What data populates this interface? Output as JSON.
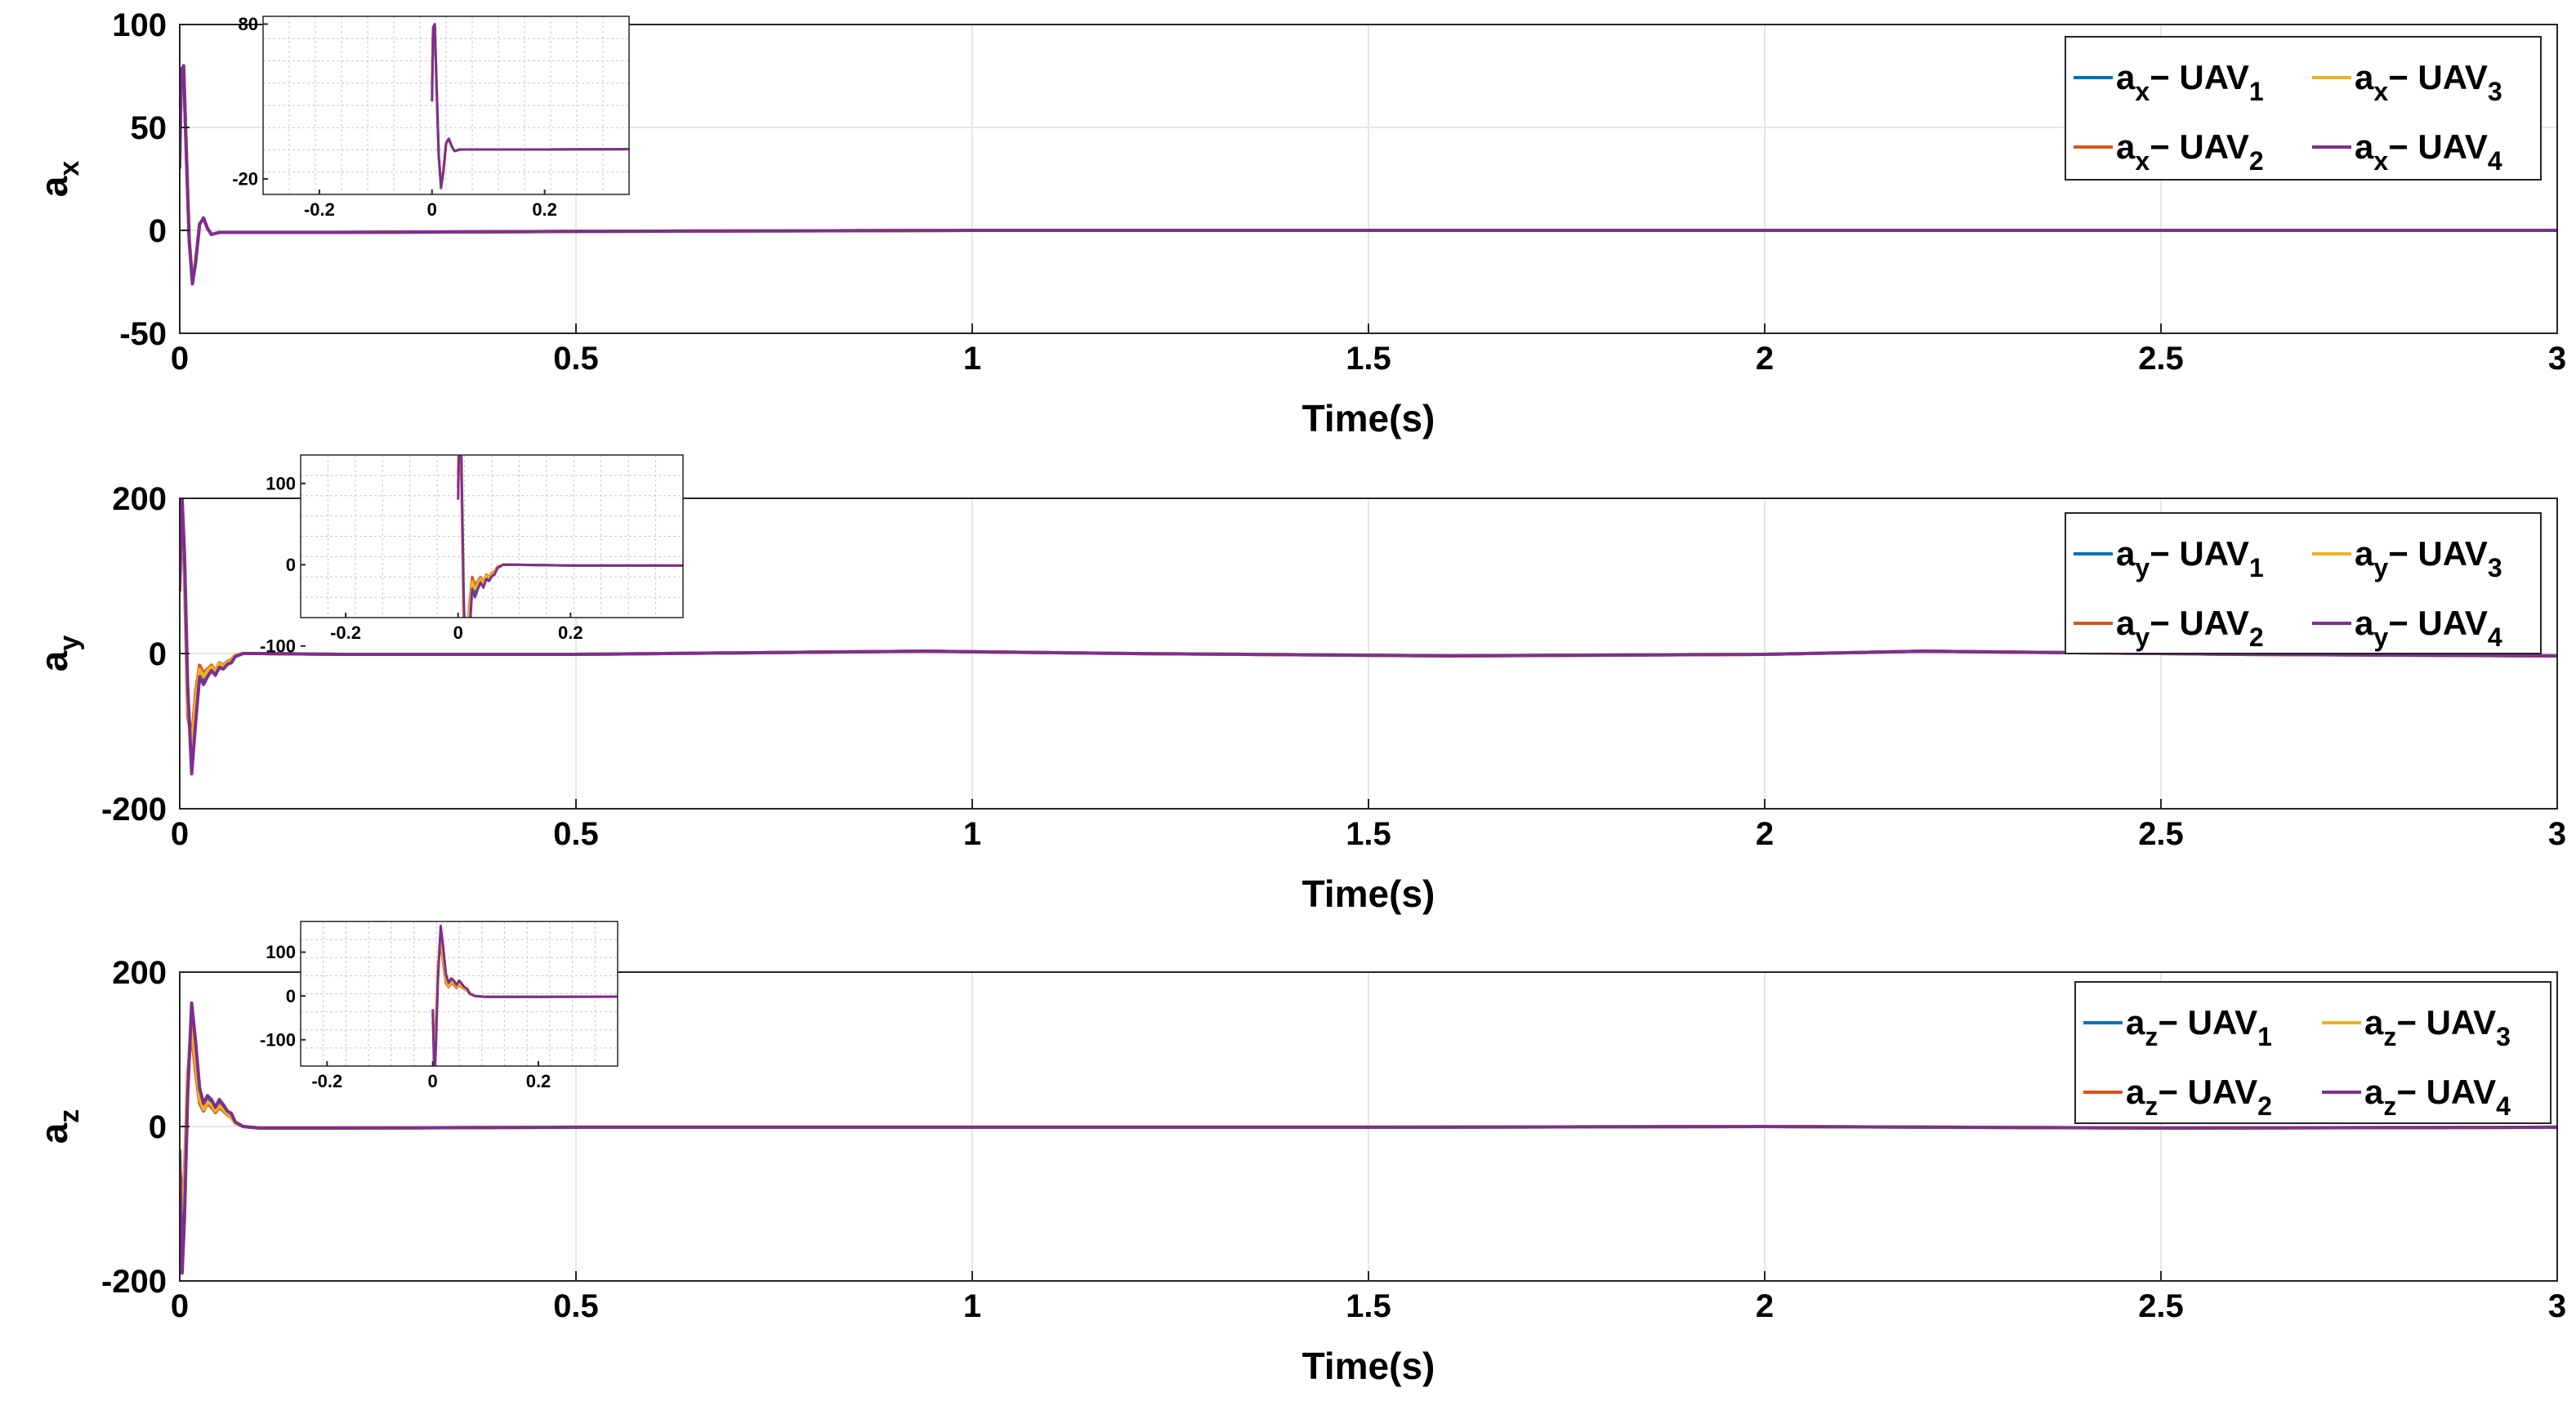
{
  "chart_data": [
    {
      "type": "line",
      "xlabel": "Time(s)",
      "ylabel_base": "a",
      "ylabel_sub": "x",
      "xlim": [
        0,
        3
      ],
      "ylim": [
        -50,
        100
      ],
      "xticks": [
        "0",
        "0.5",
        "1",
        "1.5",
        "2",
        "2.5",
        "3"
      ],
      "xtick_values": [
        0,
        0.5,
        1,
        1.5,
        2,
        2.5,
        3
      ],
      "yticks": [
        "-50",
        "0",
        "50",
        "100"
      ],
      "ytick_values": [
        -50,
        0,
        50,
        100
      ],
      "grid": true,
      "legend_position": "top-right",
      "series": [
        {
          "name_base": "a",
          "name_sub": "x",
          "uav": "UAV",
          "uav_sub": "1",
          "color": "#0072BD",
          "x": [
            0,
            0.002,
            0.005,
            0.008,
            0.012,
            0.016,
            0.02,
            0.025,
            0.03,
            0.035,
            0.04,
            0.05,
            0.06,
            0.08,
            0.1,
            0.2,
            0.5,
            1,
            1.5,
            2,
            2.5,
            3
          ],
          "y": [
            35,
            75,
            78,
            40,
            -5,
            -24,
            -15,
            3,
            6,
            1,
            -2,
            -1,
            -1,
            -1,
            -1,
            -1,
            -0.5,
            0,
            0,
            0,
            0,
            0
          ]
        },
        {
          "name_base": "a",
          "name_sub": "x",
          "uav": "UAV",
          "uav_sub": "2",
          "color": "#D95319",
          "x": [
            0,
            0.002,
            0.005,
            0.008,
            0.012,
            0.016,
            0.02,
            0.025,
            0.03,
            0.035,
            0.04,
            0.05,
            0.06,
            0.08,
            0.1,
            0.2,
            0.5,
            1,
            1.5,
            2,
            2.5,
            3
          ],
          "y": [
            40,
            76,
            78,
            42,
            -4,
            -24,
            -15,
            3,
            6,
            1,
            -2,
            -1,
            -1,
            -1,
            -1,
            -1,
            -0.5,
            0,
            0,
            0,
            0,
            0
          ]
        },
        {
          "name_base": "a",
          "name_sub": "x",
          "uav": "UAV",
          "uav_sub": "3",
          "color": "#EDB120",
          "x": [
            0,
            0.002,
            0.005,
            0.008,
            0.012,
            0.016,
            0.02,
            0.025,
            0.03,
            0.035,
            0.04,
            0.05,
            0.06,
            0.08,
            0.1,
            0.2,
            0.5,
            1,
            1.5,
            2,
            2.5,
            3
          ],
          "y": [
            45,
            77,
            79,
            43,
            -4,
            -25,
            -15,
            3,
            6,
            1,
            -2,
            -1,
            -1,
            -1,
            -1,
            -1,
            -0.5,
            0,
            0,
            0,
            0,
            0
          ]
        },
        {
          "name_base": "a",
          "name_sub": "x",
          "uav": "UAV",
          "uav_sub": "4",
          "color": "#7E2F8E",
          "x": [
            0,
            0.002,
            0.005,
            0.008,
            0.012,
            0.016,
            0.02,
            0.025,
            0.03,
            0.035,
            0.04,
            0.05,
            0.06,
            0.08,
            0.1,
            0.2,
            0.5,
            1,
            1.5,
            2,
            2.5,
            3
          ],
          "y": [
            30,
            78,
            80,
            41,
            -5,
            -26,
            -16,
            3,
            6,
            1,
            -2,
            -1,
            -1,
            -1,
            -1,
            -1,
            -0.5,
            0,
            0,
            0,
            0,
            0
          ]
        }
      ],
      "inset": {
        "xlim": [
          -0.3,
          0.35
        ],
        "ylim": [
          -30,
          85
        ],
        "xticks": [
          "-0.2",
          "0",
          "0.2"
        ],
        "xtick_values": [
          -0.2,
          0,
          0.2
        ],
        "yticks": [
          "-20",
          "80"
        ],
        "ytick_values": [
          -20,
          80
        ]
      }
    },
    {
      "type": "line",
      "xlabel": "Time(s)",
      "ylabel_base": "a",
      "ylabel_sub": "y",
      "xlim": [
        0,
        3
      ],
      "ylim": [
        -200,
        200
      ],
      "xticks": [
        "0",
        "0.5",
        "1",
        "1.5",
        "2",
        "2.5",
        "3"
      ],
      "xtick_values": [
        0,
        0.5,
        1,
        1.5,
        2,
        2.5,
        3
      ],
      "yticks": [
        "-200",
        "0",
        "200"
      ],
      "ytick_values": [
        -200,
        0,
        200
      ],
      "grid": true,
      "legend_position": "top-right",
      "series": [
        {
          "name_base": "a",
          "name_sub": "y",
          "uav": "UAV",
          "uav_sub": "1",
          "color": "#0072BD",
          "x": [
            0,
            0.003,
            0.006,
            0.01,
            0.015,
            0.02,
            0.025,
            0.03,
            0.035,
            0.04,
            0.045,
            0.05,
            0.055,
            0.06,
            0.065,
            0.07,
            0.08,
            0.1,
            0.2,
            0.5,
            0.94,
            1.2,
            1.6,
            2,
            2.2,
            2.6,
            3
          ],
          "y": [
            95,
            190,
            120,
            -60,
            -130,
            -70,
            -25,
            -35,
            -25,
            -20,
            -25,
            -15,
            -18,
            -12,
            -10,
            -3,
            0,
            0,
            -1,
            -1,
            3,
            0,
            -3,
            -1,
            3,
            -1,
            -3
          ]
        },
        {
          "name_base": "a",
          "name_sub": "y",
          "uav": "UAV",
          "uav_sub": "2",
          "color": "#D95319",
          "x": [
            0,
            0.003,
            0.006,
            0.01,
            0.015,
            0.02,
            0.025,
            0.03,
            0.035,
            0.04,
            0.045,
            0.05,
            0.055,
            0.06,
            0.065,
            0.07,
            0.08,
            0.1,
            0.2,
            0.5,
            0.94,
            1.2,
            1.6,
            2,
            2.2,
            2.6,
            3
          ],
          "y": [
            110,
            180,
            100,
            -80,
            -110,
            -50,
            -15,
            -25,
            -20,
            -15,
            -22,
            -12,
            -15,
            -10,
            -8,
            -2,
            0,
            0,
            -1,
            -1,
            3,
            0,
            -3,
            -1,
            3,
            -1,
            -3
          ]
        },
        {
          "name_base": "a",
          "name_sub": "y",
          "uav": "UAV",
          "uav_sub": "3",
          "color": "#EDB120",
          "x": [
            0,
            0.003,
            0.006,
            0.01,
            0.015,
            0.02,
            0.025,
            0.03,
            0.035,
            0.04,
            0.045,
            0.05,
            0.055,
            0.06,
            0.065,
            0.07,
            0.08,
            0.1,
            0.2,
            0.5,
            0.94,
            1.2,
            1.6,
            2,
            2.2,
            2.6,
            3
          ],
          "y": [
            120,
            185,
            110,
            -70,
            -120,
            -60,
            -20,
            -30,
            -22,
            -17,
            -23,
            -13,
            -16,
            -11,
            -9,
            -2,
            0,
            0,
            -1,
            -1,
            3,
            0,
            -3,
            -1,
            3,
            -1,
            -3
          ]
        },
        {
          "name_base": "a",
          "name_sub": "y",
          "uav": "UAV",
          "uav_sub": "4",
          "color": "#7E2F8E",
          "x": [
            0,
            0.003,
            0.006,
            0.01,
            0.015,
            0.02,
            0.025,
            0.03,
            0.035,
            0.04,
            0.045,
            0.05,
            0.055,
            0.06,
            0.065,
            0.07,
            0.08,
            0.1,
            0.2,
            0.5,
            0.94,
            1.2,
            1.6,
            2,
            2.2,
            2.6,
            3
          ],
          "y": [
            80,
            200,
            130,
            -40,
            -155,
            -90,
            -30,
            -40,
            -30,
            -22,
            -28,
            -18,
            -20,
            -14,
            -12,
            -4,
            0,
            0,
            -1,
            -1,
            3,
            0,
            -3,
            -1,
            3,
            -1,
            -3
          ]
        }
      ],
      "inset": {
        "xlim": [
          -0.28,
          0.4
        ],
        "ylim": [
          -65,
          135
        ],
        "xticks": [
          "-0.2",
          "0",
          "0.2"
        ],
        "xtick_values": [
          -0.2,
          0,
          0.2
        ],
        "yticks": [
          "-100",
          "0",
          "100"
        ],
        "ytick_values": [
          -100,
          0,
          100
        ]
      }
    },
    {
      "type": "line",
      "xlabel": "Time(s)",
      "ylabel_base": "a",
      "ylabel_sub": "z",
      "xlim": [
        0,
        3
      ],
      "ylim": [
        -200,
        200
      ],
      "xticks": [
        "0",
        "0.5",
        "1",
        "1.5",
        "2",
        "2.5",
        "3"
      ],
      "xtick_values": [
        0,
        0.5,
        1,
        1.5,
        2,
        2.5,
        3
      ],
      "yticks": [
        "-200",
        "0",
        "200"
      ],
      "ytick_values": [
        -200,
        0,
        200
      ],
      "grid": true,
      "legend_position": "top-right",
      "series": [
        {
          "name_base": "a",
          "name_sub": "z",
          "uav": "UAV",
          "uav_sub": "1",
          "color": "#0072BD",
          "x": [
            0,
            0.003,
            0.006,
            0.01,
            0.015,
            0.02,
            0.025,
            0.03,
            0.035,
            0.04,
            0.045,
            0.05,
            0.055,
            0.06,
            0.065,
            0.07,
            0.08,
            0.1,
            0.2,
            0.5,
            1,
            1.5,
            2,
            2.5,
            3
          ],
          "y": [
            -40,
            -120,
            -80,
            60,
            145,
            90,
            40,
            25,
            35,
            30,
            22,
            30,
            25,
            18,
            15,
            5,
            0,
            -2,
            -2,
            -1,
            -1,
            -1,
            0,
            -2,
            -1
          ]
        },
        {
          "name_base": "a",
          "name_sub": "z",
          "uav": "UAV",
          "uav_sub": "2",
          "color": "#D95319",
          "x": [
            0,
            0.003,
            0.006,
            0.01,
            0.015,
            0.02,
            0.025,
            0.03,
            0.035,
            0.04,
            0.045,
            0.05,
            0.055,
            0.06,
            0.065,
            0.07,
            0.08,
            0.1,
            0.2,
            0.5,
            1,
            1.5,
            2,
            2.5,
            3
          ],
          "y": [
            -60,
            -100,
            -60,
            70,
            120,
            70,
            30,
            20,
            30,
            25,
            18,
            25,
            20,
            15,
            12,
            4,
            0,
            -2,
            -2,
            -1,
            -1,
            -1,
            0,
            -2,
            -1
          ]
        },
        {
          "name_base": "a",
          "name_sub": "z",
          "uav": "UAV",
          "uav_sub": "3",
          "color": "#EDB120",
          "x": [
            0,
            0.003,
            0.006,
            0.01,
            0.015,
            0.02,
            0.025,
            0.03,
            0.035,
            0.04,
            0.045,
            0.05,
            0.055,
            0.06,
            0.065,
            0.07,
            0.08,
            0.1,
            0.2,
            0.5,
            1,
            1.5,
            2,
            2.5,
            3
          ],
          "y": [
            -70,
            -110,
            -70,
            65,
            130,
            80,
            35,
            22,
            32,
            28,
            20,
            27,
            22,
            16,
            13,
            4,
            0,
            -2,
            -2,
            -1,
            -1,
            -1,
            0,
            -2,
            -1
          ]
        },
        {
          "name_base": "a",
          "name_sub": "z",
          "uav": "UAV",
          "uav_sub": "4",
          "color": "#7E2F8E",
          "x": [
            0,
            0.003,
            0.006,
            0.01,
            0.015,
            0.02,
            0.025,
            0.03,
            0.035,
            0.04,
            0.045,
            0.05,
            0.055,
            0.06,
            0.065,
            0.07,
            0.08,
            0.1,
            0.2,
            0.5,
            1,
            1.5,
            2,
            2.5,
            3
          ],
          "y": [
            -30,
            -190,
            -120,
            40,
            160,
            110,
            50,
            30,
            40,
            35,
            25,
            35,
            28,
            20,
            17,
            6,
            0,
            -2,
            -2,
            -1,
            -1,
            -1,
            0,
            -2,
            -1
          ]
        }
      ],
      "inset": {
        "xlim": [
          -0.25,
          0.35
        ],
        "ylim": [
          -160,
          170
        ],
        "xticks": [
          "-0.2",
          "0",
          "0.2"
        ],
        "xtick_values": [
          -0.2,
          0,
          0.2
        ],
        "yticks": [
          "-100",
          "0",
          "100"
        ],
        "ytick_values": [
          -100,
          0,
          100
        ]
      }
    }
  ]
}
